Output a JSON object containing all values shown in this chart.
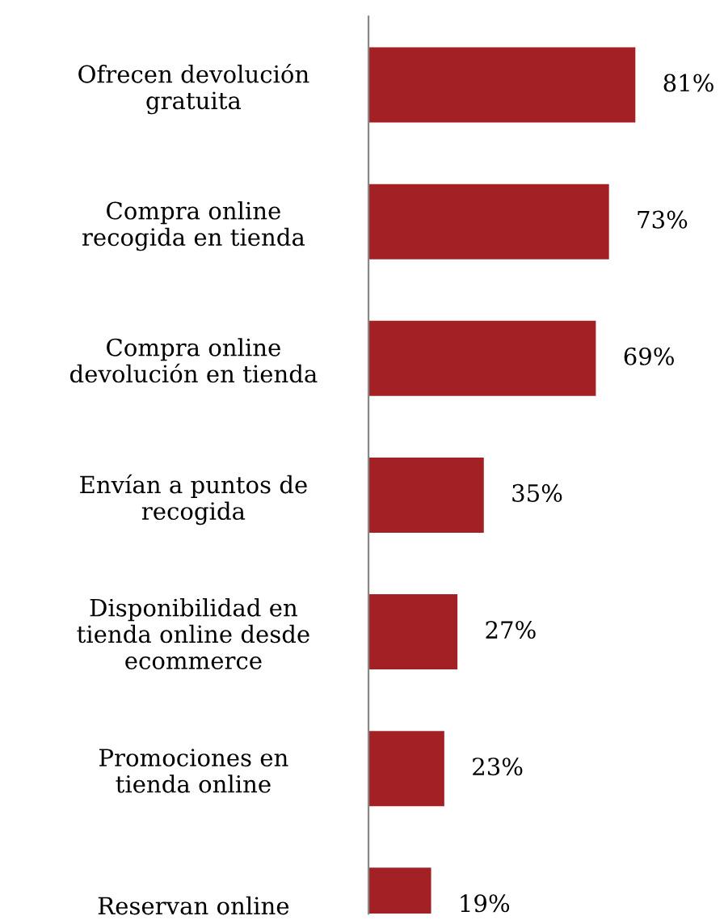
{
  "chart_data": {
    "type": "bar",
    "orientation": "horizontal",
    "categories": [
      "Ofrecen devolución\ngratuita",
      "Compra online\nrecogida en tienda",
      "Compra online\ndevolución en tienda",
      "Envían a puntos de\nrecogida",
      "Disponibilidad en\ntienda online desde\necommerce",
      "Promociones en\ntienda online",
      "Reservan online"
    ],
    "values": [
      81,
      73,
      69,
      35,
      27,
      23,
      19
    ],
    "value_labels": [
      "81%",
      "73%",
      "69%",
      "35%",
      "27%",
      "23%",
      "19%"
    ],
    "color": "#a32025",
    "tick_labels": "y",
    "grid": false,
    "legend": false
  }
}
